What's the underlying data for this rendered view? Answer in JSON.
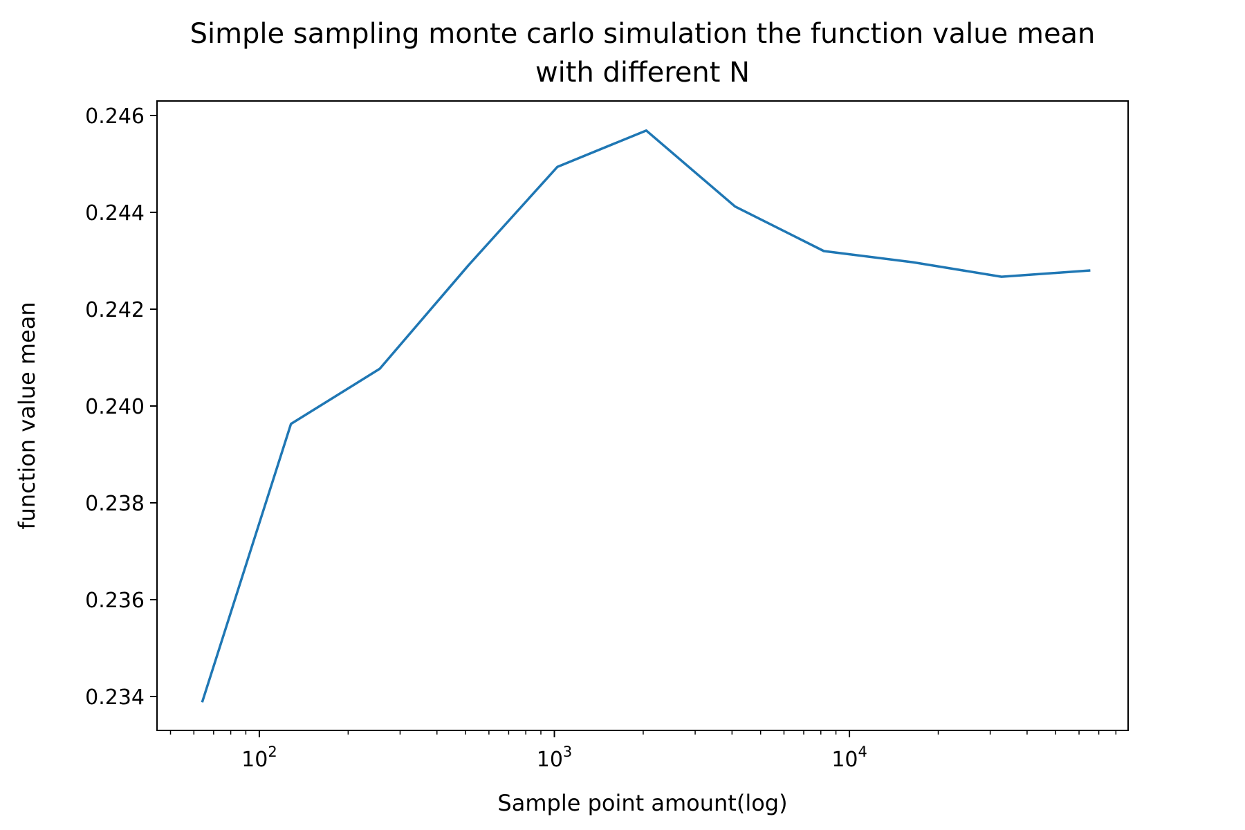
{
  "chart_data": {
    "type": "line",
    "title_lines": [
      "Simple sampling monte carlo simulation the function value mean",
      "with different N"
    ],
    "xlabel": "Sample point amount(log)",
    "ylabel": "function value mean",
    "xscale": "log",
    "xlim": [
      45,
      88000
    ],
    "ylim": [
      0.2333,
      0.2463
    ],
    "grid": false,
    "line_color": "#1f77b4",
    "x_ticks": [
      {
        "value": 100,
        "base": "10",
        "exp": "2"
      },
      {
        "value": 1000,
        "base": "10",
        "exp": "3"
      },
      {
        "value": 10000,
        "base": "10",
        "exp": "4"
      }
    ],
    "y_ticks": [
      {
        "value": 0.234,
        "label": "0.234"
      },
      {
        "value": 0.236,
        "label": "0.236"
      },
      {
        "value": 0.238,
        "label": "0.238"
      },
      {
        "value": 0.24,
        "label": "0.240"
      },
      {
        "value": 0.242,
        "label": "0.242"
      },
      {
        "value": 0.244,
        "label": "0.244"
      },
      {
        "value": 0.246,
        "label": "0.246"
      }
    ],
    "series": [
      {
        "name": "function value mean",
        "x": [
          64,
          128,
          256,
          512,
          1024,
          2048,
          4096,
          8192,
          16384,
          32768,
          65536
        ],
        "y": [
          0.23388,
          0.23963,
          0.24077,
          0.24291,
          0.24494,
          0.24569,
          0.24412,
          0.2432,
          0.24297,
          0.24267,
          0.2428
        ]
      }
    ]
  }
}
